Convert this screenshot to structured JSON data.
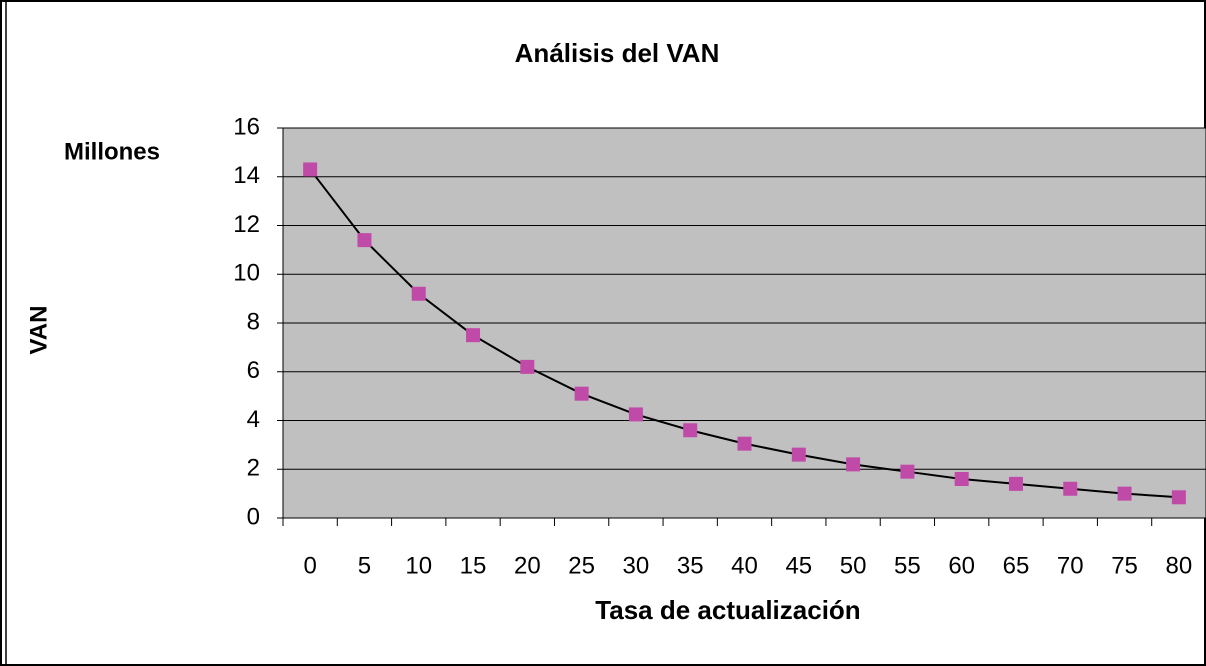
{
  "chart_data": {
    "type": "line",
    "title": "Análisis del VAN",
    "unit_label": "Millones",
    "ylabel": "VAN",
    "xlabel": "Tasa de actualización",
    "categories": [
      "0",
      "5",
      "10",
      "15",
      "20",
      "25",
      "30",
      "35",
      "40",
      "45",
      "50",
      "55",
      "60",
      "65",
      "70",
      "75",
      "80"
    ],
    "values": [
      14.3,
      11.4,
      9.2,
      7.5,
      6.2,
      5.1,
      4.25,
      3.6,
      3.05,
      2.6,
      2.2,
      1.9,
      1.6,
      1.4,
      1.2,
      1.0,
      0.85
    ],
    "line_color": "#000000",
    "marker_color": "#c04aa8",
    "plot_background": "#c0c0c0",
    "ylim": [
      0,
      16
    ],
    "yticks": [
      0,
      2,
      4,
      6,
      8,
      10,
      12,
      14,
      16
    ],
    "grid": true
  }
}
